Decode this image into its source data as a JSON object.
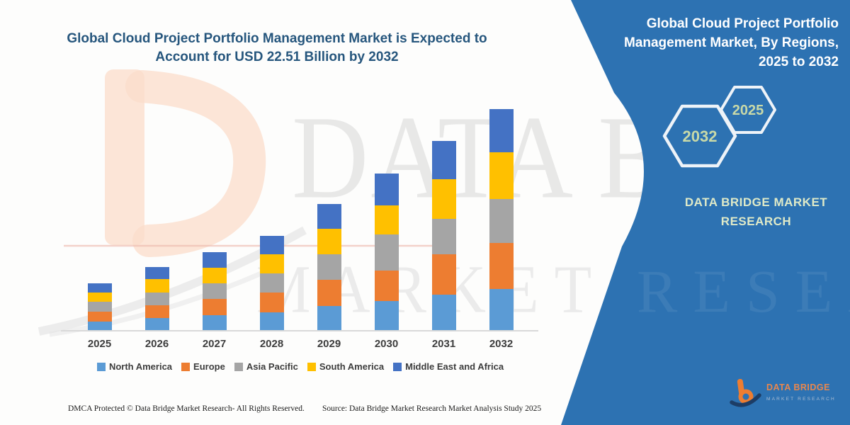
{
  "left_title": {
    "line1": "Global Cloud Project Portfolio Management Market is Expected to",
    "line2": "Account for USD 22.51 Billion by 2032"
  },
  "chart_data": {
    "type": "bar",
    "stacked": true,
    "title": "Global Cloud Project Portfolio Management Market is Expected to Account for USD 22.51 Billion by 2032",
    "unit": "USD Billion",
    "categories": [
      "2025",
      "2026",
      "2027",
      "2028",
      "2029",
      "2030",
      "2031",
      "2032"
    ],
    "series": [
      {
        "name": "North America",
        "color": "#5b9bd5",
        "values": [
          0.95,
          1.27,
          1.57,
          1.9,
          2.52,
          3.0,
          3.7,
          4.25
        ]
      },
      {
        "name": "Europe",
        "color": "#ed7d31",
        "values": [
          1.02,
          1.35,
          1.66,
          2.0,
          2.68,
          3.1,
          4.05,
          4.7
        ]
      },
      {
        "name": "Asia Pacific",
        "color": "#a5a5a5",
        "values": [
          0.95,
          1.28,
          1.58,
          1.9,
          2.56,
          3.65,
          3.6,
          4.4
        ]
      },
      {
        "name": "South America",
        "color": "#ffc000",
        "values": [
          1.0,
          1.32,
          1.62,
          1.95,
          2.6,
          3.0,
          4.05,
          4.75
        ]
      },
      {
        "name": "Middle East and Africa",
        "color": "#4472c4",
        "values": [
          0.93,
          1.28,
          1.57,
          1.9,
          2.54,
          3.2,
          3.85,
          4.41
        ]
      }
    ],
    "totals": [
      4.85,
      6.5,
      8.0,
      9.65,
      12.9,
      15.95,
      19.25,
      22.51
    ],
    "ylim": [
      0,
      22.51
    ],
    "grid": false,
    "x_axis_visible": true,
    "y_axis_visible": false,
    "legend_position": "bottom"
  },
  "watermarks": {
    "line1": "DATA BRI",
    "line2": "MARKET RESEARCH"
  },
  "footer": {
    "left": "DMCA Protected © Data Bridge Market Research- All Rights Reserved.",
    "right": "Source: Data Bridge Market Research Market Analysis Study 2025"
  },
  "panel": {
    "color": "#2d72b2",
    "title_lines": [
      "Global Cloud Project Portfolio",
      "Management Market, By Regions,",
      "2025 to 2032"
    ],
    "hexagons": [
      {
        "label": "2032"
      },
      {
        "label": "2025"
      }
    ],
    "brand_line1": "DATA BRIDGE MARKET",
    "brand_line2": "RESEARCH",
    "logo_title": "DATA BRIDGE",
    "logo_sub": "MARKET RESEARCH"
  }
}
